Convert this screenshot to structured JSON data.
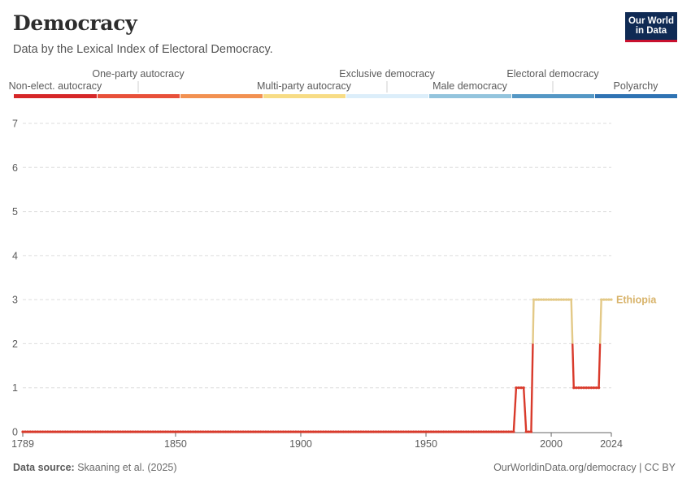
{
  "header": {
    "title": "Democracy",
    "subtitle": "Data by the Lexical Index of Electoral Democracy."
  },
  "logo": {
    "line1": "Our World",
    "line2": "in Data"
  },
  "legend": [
    {
      "label": "Non-elect. autocracy",
      "color": "#d62728",
      "row": "lower"
    },
    {
      "label": "One-party autocracy",
      "color": "#e8503a",
      "row": "upper"
    },
    {
      "label": "",
      "color": "#f29151",
      "row": "none"
    },
    {
      "label": "Multi-party autocracy",
      "color": "#f7dc85",
      "row": "lower"
    },
    {
      "label": "Exclusive democracy",
      "color": "#dceefa",
      "row": "upper"
    },
    {
      "label": "Male democracy",
      "color": "#93c4dd",
      "row": "lower"
    },
    {
      "label": "Electoral democracy",
      "color": "#5497c5",
      "row": "upper"
    },
    {
      "label": "Polyarchy",
      "color": "#2f73b3",
      "row": "lower"
    }
  ],
  "footer": {
    "source_label": "Data source:",
    "source_text": " Skaaning et al. (2025)",
    "right": "OurWorldinData.org/democracy | CC BY"
  },
  "colors": {
    "low": "#d93a2b",
    "multiparty": "#e3c987",
    "grid": "#dddddd",
    "axis": "#333333",
    "tick_text": "#5b5b5b"
  },
  "chart_data": {
    "type": "line",
    "title": "Democracy",
    "subtitle": "Data by the Lexical Index of Electoral Democracy.",
    "xlabel": "",
    "ylabel": "",
    "xlim": [
      1789,
      2024
    ],
    "ylim": [
      0,
      7
    ],
    "yticks": [
      0,
      1,
      2,
      3,
      4,
      5,
      6,
      7
    ],
    "xticks": [
      1789,
      1850,
      1900,
      1950,
      2000,
      2024
    ],
    "grid": true,
    "series": [
      {
        "name": "Ethiopia",
        "label_color": "#d8b36a",
        "points": [
          [
            1789,
            0
          ],
          [
            1985,
            0
          ],
          [
            1986,
            1
          ],
          [
            1989,
            1
          ],
          [
            1990,
            0
          ],
          [
            1992,
            0
          ],
          [
            1993,
            3
          ],
          [
            2008,
            3
          ],
          [
            2009,
            1
          ],
          [
            2019,
            1
          ],
          [
            2020,
            3
          ],
          [
            2024,
            3
          ]
        ]
      }
    ]
  }
}
